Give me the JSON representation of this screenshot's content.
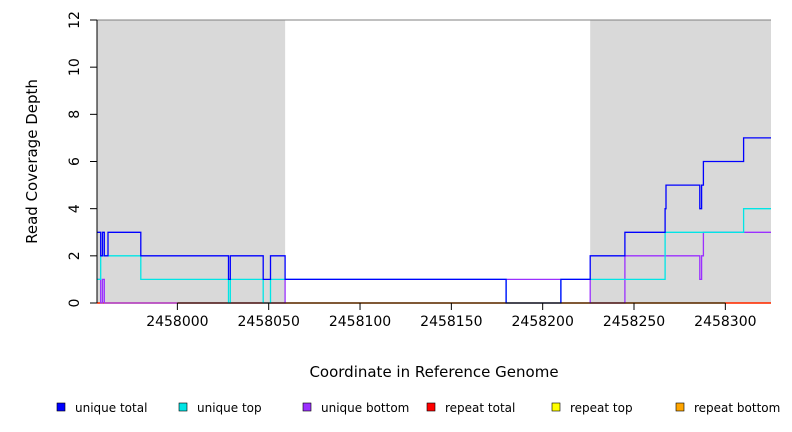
{
  "chart_data": {
    "type": "line",
    "line_style": "step",
    "xlabel": "Coordinate in Reference Genome",
    "ylabel": "Read Coverage Depth",
    "xlim": [
      2457956,
      2458325
    ],
    "ylim": [
      0,
      12
    ],
    "x_ticks": [
      2458000,
      2458050,
      2458100,
      2458150,
      2458200,
      2458250,
      2458300
    ],
    "x_tick_labels": [
      "2458000",
      "2458050",
      "2458100",
      "2458150",
      "2458200",
      "2458250",
      "2458300"
    ],
    "y_ticks": [
      0,
      2,
      4,
      6,
      8,
      10,
      12
    ],
    "y_tick_labels": [
      "0",
      "2",
      "4",
      "6",
      "8",
      "10",
      "12"
    ],
    "grid": false,
    "shaded_regions": [
      {
        "x0": 2457956,
        "x1": 2458059,
        "color": "#d9d9d9"
      },
      {
        "x0": 2458226,
        "x1": 2458325,
        "color": "#d9d9d9"
      }
    ],
    "legend_position": "bottom",
    "series": [
      {
        "name": "unique total",
        "color": "#0000ff",
        "x": [
          2457956,
          2457958,
          2457959,
          2457960,
          2457962,
          2457980,
          2458028,
          2458029,
          2458047,
          2458051,
          2458059,
          2458180,
          2458210,
          2458226,
          2458245,
          2458267,
          2458267.5,
          2458286,
          2458287,
          2458288,
          2458310,
          2458325
        ],
        "y": [
          3,
          2,
          3,
          2,
          3,
          2,
          1,
          2,
          1,
          2,
          1,
          0,
          1,
          2,
          3,
          4,
          5,
          4,
          5,
          6,
          7,
          7
        ]
      },
      {
        "name": "unique top",
        "color": "#00e5e5",
        "x": [
          2457956,
          2457958,
          2457980,
          2458028,
          2458029,
          2458047,
          2458051,
          2458059,
          2458180,
          2458210,
          2458226,
          2458267,
          2458286,
          2458310,
          2458325
        ],
        "y": [
          1,
          2,
          1,
          0,
          1,
          0,
          1,
          1,
          0,
          1,
          1,
          3,
          3,
          4,
          4
        ]
      },
      {
        "name": "unique bottom",
        "color": "#9b30ff",
        "x": [
          2457956,
          2457958,
          2457959,
          2457960,
          2458059,
          2458226,
          2458245,
          2458286,
          2458287,
          2458288,
          2458325
        ],
        "y": [
          1,
          0,
          1,
          0,
          1,
          0,
          2,
          1,
          2,
          3,
          3
        ]
      },
      {
        "name": "repeat total",
        "color": "#ff0000",
        "x": [
          2457956,
          2458325
        ],
        "y": [
          0,
          0
        ]
      },
      {
        "name": "repeat top",
        "color": "#ffff00",
        "x": [
          2457956,
          2458325
        ],
        "y": [
          0,
          0
        ]
      },
      {
        "name": "repeat bottom",
        "color": "#ffa500",
        "x": [
          2457956,
          2458325
        ],
        "y": [
          0,
          0
        ]
      }
    ]
  }
}
